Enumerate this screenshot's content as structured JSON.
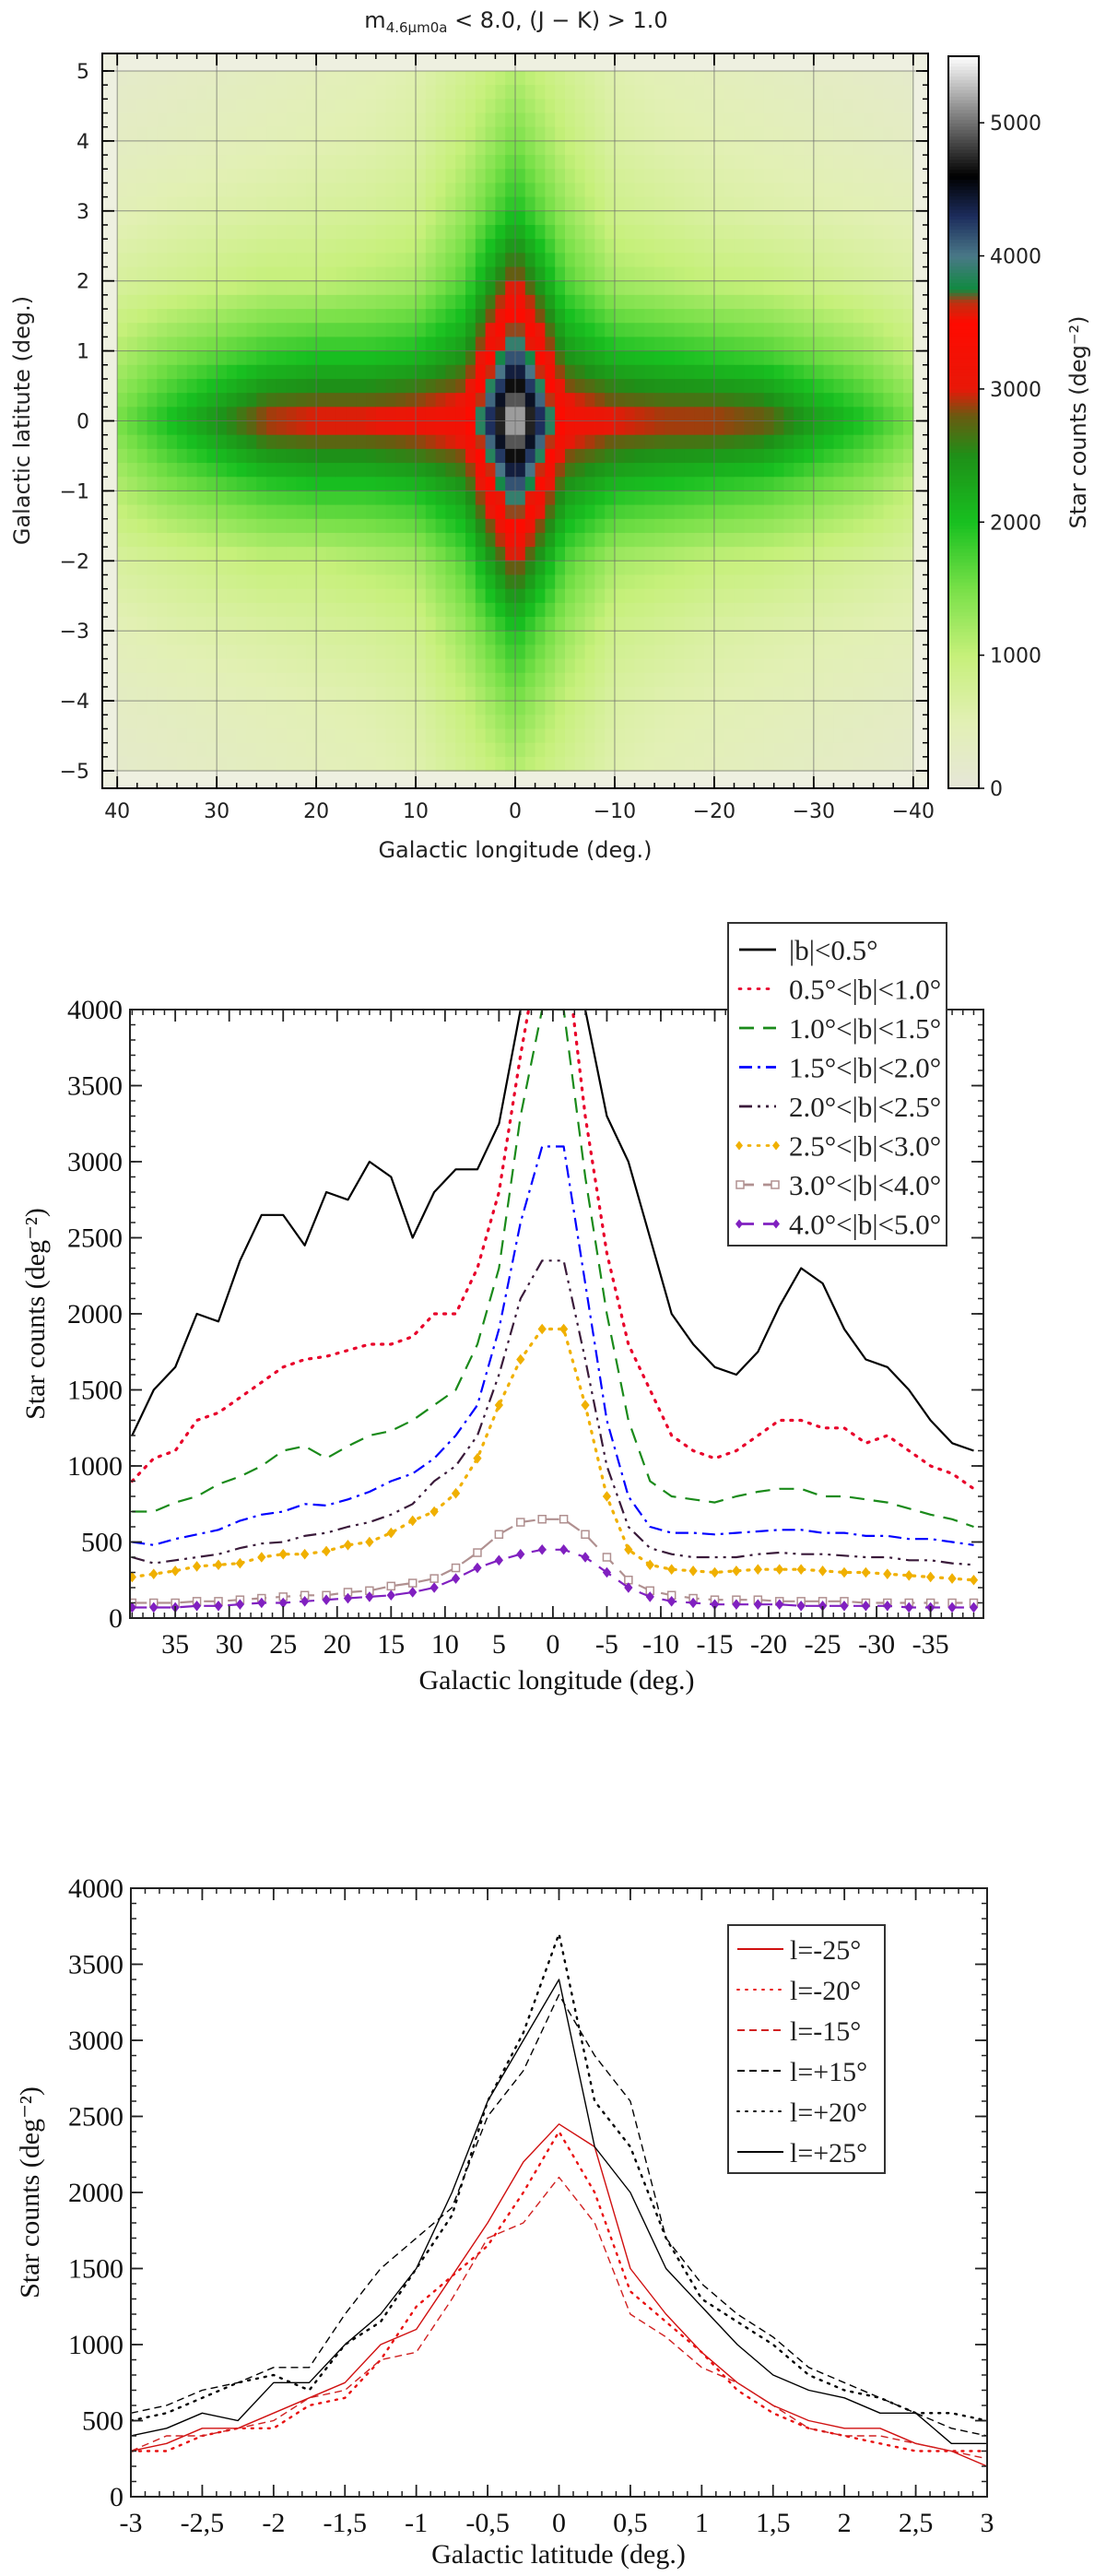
{
  "chart_data": [
    {
      "type": "heatmap",
      "title": {
        "main": "m",
        "sub": "4.6μm0a",
        "rest": " < 8.0, (J − K) > 1.0"
      },
      "xlabel": "Galactic longitude (deg.)",
      "ylabel": "Galactic latitute (deg.)",
      "colorbar_label": "Star counts (deg⁻²)",
      "xlim": [
        41.5,
        -41.5
      ],
      "ylim": [
        -5.25,
        5.25
      ],
      "grid": true,
      "xticks": [
        40,
        30,
        20,
        10,
        0,
        -10,
        -20,
        -30,
        -40
      ],
      "xtick_labels": [
        "40",
        "30",
        "20",
        "10",
        "0",
        "−10",
        "−20",
        "−30",
        "−40"
      ],
      "yticks": [
        5,
        4,
        3,
        2,
        1,
        0,
        -1,
        -2,
        -3,
        -4,
        -5
      ],
      "ytick_labels": [
        "5",
        "4",
        "3",
        "2",
        "1",
        "0",
        "−1",
        "−2",
        "−3",
        "−4",
        "−5"
      ],
      "colorbar_range": [
        0,
        5500
      ],
      "colorbar_ticks": [
        0,
        1000,
        2000,
        3000,
        4000,
        5000
      ],
      "colorbar_tick_labels": [
        "0",
        "1000",
        "2000",
        "3000",
        "4000",
        "5000"
      ],
      "colorscale": [
        [
          0,
          "#e6e6d8"
        ],
        [
          500,
          "#e2f0b4"
        ],
        [
          1000,
          "#c6f07a"
        ],
        [
          1500,
          "#78e048"
        ],
        [
          2000,
          "#18c020"
        ],
        [
          2500,
          "#1e9018"
        ],
        [
          2800,
          "#6a5a10"
        ],
        [
          3000,
          "#e81808"
        ],
        [
          3500,
          "#ff0a00"
        ],
        [
          3650,
          "#c03010"
        ],
        [
          3750,
          "#108a40"
        ],
        [
          4000,
          "#4a7888"
        ],
        [
          4300,
          "#1c2c5c"
        ],
        [
          4600,
          "#000000"
        ],
        [
          5000,
          "#707070"
        ],
        [
          5500,
          "#ffffff"
        ]
      ],
      "l": [
        40,
        35,
        30,
        25,
        20,
        15,
        10,
        5,
        0,
        -5,
        -10,
        -15,
        -20,
        -25,
        -30,
        -35,
        -40
      ],
      "b": [
        5,
        4,
        3,
        2,
        1,
        0,
        -1,
        -2,
        -3,
        -4,
        -5
      ],
      "values": [
        [
          200,
          250,
          300,
          350,
          400,
          450,
          550,
          800,
          1100,
          800,
          550,
          450,
          400,
          350,
          300,
          250,
          200
        ],
        [
          300,
          350,
          400,
          450,
          500,
          550,
          650,
          1000,
          1500,
          1000,
          650,
          550,
          500,
          450,
          400,
          350,
          300
        ],
        [
          450,
          550,
          600,
          650,
          700,
          750,
          850,
          1300,
          2000,
          1300,
          850,
          750,
          650,
          600,
          550,
          500,
          450
        ],
        [
          700,
          800,
          900,
          1000,
          1000,
          1100,
          1200,
          1700,
          3000,
          1700,
          1200,
          1100,
          1000,
          950,
          850,
          750,
          650
        ],
        [
          1100,
          1400,
          1600,
          1800,
          1900,
          1900,
          2000,
          2400,
          4200,
          2400,
          2000,
          1900,
          1800,
          1700,
          1500,
          1300,
          1000
        ],
        [
          1500,
          2000,
          2500,
          3000,
          3100,
          3100,
          3200,
          3300,
          5500,
          3300,
          3100,
          3000,
          3000,
          2900,
          2400,
          2000,
          1500
        ],
        [
          1100,
          1400,
          1600,
          1800,
          1900,
          1900,
          2000,
          2400,
          4200,
          2400,
          2000,
          1900,
          1800,
          1700,
          1500,
          1300,
          1000
        ],
        [
          700,
          800,
          900,
          1000,
          1000,
          1100,
          1200,
          1700,
          3000,
          1700,
          1200,
          1100,
          1000,
          950,
          850,
          750,
          650
        ],
        [
          450,
          550,
          600,
          650,
          700,
          750,
          850,
          1300,
          2000,
          1300,
          850,
          750,
          650,
          600,
          550,
          500,
          450
        ],
        [
          300,
          350,
          400,
          450,
          500,
          550,
          650,
          1000,
          1500,
          1000,
          650,
          550,
          500,
          450,
          400,
          350,
          300
        ],
        [
          200,
          250,
          300,
          350,
          400,
          450,
          550,
          800,
          1100,
          800,
          550,
          450,
          400,
          350,
          300,
          250,
          200
        ]
      ]
    },
    {
      "type": "line",
      "xlabel": "Galactic longitude (deg.)",
      "ylabel": "Star counts (deg⁻²)",
      "xlim": [
        39.2,
        -39.9
      ],
      "ylim": [
        0,
        4000
      ],
      "xticks": [
        35,
        30,
        25,
        20,
        15,
        10,
        5,
        0,
        -5,
        -10,
        -15,
        -20,
        -25,
        -30,
        -35
      ],
      "xtick_labels": [
        "35",
        "30",
        "25",
        "20",
        "15",
        "10",
        "5",
        "0",
        "-5",
        "-10",
        "-15",
        "-20",
        "-25",
        "-30",
        "-35"
      ],
      "yticks": [
        0,
        500,
        1000,
        1500,
        2000,
        2500,
        3000,
        3500,
        4000
      ],
      "ytick_labels": [
        "0",
        "500",
        "1000",
        "1500",
        "2000",
        "2500",
        "3000",
        "3500",
        "4000"
      ],
      "legend": "top-right",
      "x": [
        39,
        37,
        35,
        33,
        31,
        29,
        27,
        25,
        23,
        21,
        19,
        17,
        15,
        13,
        11,
        9,
        7,
        5,
        3,
        1,
        -1,
        -3,
        -5,
        -7,
        -9,
        -11,
        -13,
        -15,
        -17,
        -19,
        -21,
        -23,
        -25,
        -27,
        -29,
        -31,
        -33,
        -35,
        -37,
        -39
      ],
      "series": [
        {
          "name": "|b|<0.5°",
          "color": "#000000",
          "style": "solid",
          "marker": "none",
          "values": [
            1200,
            1500,
            1650,
            2000,
            1950,
            2350,
            2650,
            2650,
            2450,
            2800,
            2750,
            3000,
            2900,
            2500,
            2800,
            2950,
            2950,
            3250,
            4000,
            4500,
            4500,
            4000,
            3300,
            3000,
            2500,
            2000,
            1800,
            1650,
            1600,
            1750,
            2050,
            2300,
            2200,
            1900,
            1700,
            1650,
            1500,
            1300,
            1150,
            1100
          ]
        },
        {
          "name": "0.5°<|b|<1.0°",
          "color": "#e8002a",
          "style": "dotted",
          "marker": "none",
          "values": [
            900,
            1050,
            1100,
            1300,
            1350,
            1450,
            1550,
            1650,
            1700,
            1720,
            1760,
            1800,
            1800,
            1850,
            2000,
            2000,
            2300,
            2800,
            3700,
            4500,
            4500,
            3300,
            2400,
            1800,
            1500,
            1200,
            1100,
            1050,
            1100,
            1200,
            1300,
            1300,
            1250,
            1250,
            1150,
            1200,
            1100,
            1000,
            950,
            850
          ]
        },
        {
          "name": "1.0°<|b|<1.5°",
          "color": "#1a8a1a",
          "style": "dashed",
          "marker": "none",
          "values": [
            700,
            700,
            760,
            800,
            880,
            930,
            1000,
            1100,
            1130,
            1050,
            1130,
            1200,
            1230,
            1300,
            1400,
            1500,
            1800,
            2300,
            3300,
            4000,
            4000,
            2900,
            2000,
            1300,
            900,
            800,
            780,
            760,
            800,
            830,
            850,
            850,
            800,
            800,
            780,
            760,
            720,
            680,
            650,
            600
          ]
        },
        {
          "name": "1.5°<|b|<2.0°",
          "color": "#0000ff",
          "style": "dashdot",
          "marker": "none",
          "values": [
            500,
            480,
            520,
            550,
            580,
            640,
            680,
            700,
            750,
            740,
            780,
            830,
            900,
            950,
            1050,
            1200,
            1400,
            1900,
            2600,
            3100,
            3100,
            2200,
            1300,
            800,
            600,
            560,
            560,
            550,
            560,
            570,
            580,
            580,
            560,
            560,
            540,
            540,
            520,
            520,
            500,
            480
          ]
        },
        {
          "name": "2.0°<|b|<2.5°",
          "color": "#3a1a3a",
          "style": "dashdotdot",
          "marker": "none",
          "values": [
            400,
            360,
            380,
            400,
            420,
            460,
            490,
            500,
            540,
            560,
            600,
            630,
            680,
            750,
            900,
            1000,
            1200,
            1600,
            2100,
            2350,
            2350,
            1700,
            1000,
            600,
            460,
            420,
            400,
            400,
            400,
            420,
            430,
            420,
            420,
            410,
            400,
            400,
            380,
            380,
            360,
            350
          ]
        },
        {
          "name": "2.5°<|b|<3.0°",
          "color": "#f0b000",
          "style": "dotted",
          "marker": "diamond",
          "values": [
            270,
            290,
            310,
            340,
            350,
            360,
            400,
            420,
            420,
            440,
            480,
            500,
            560,
            640,
            700,
            820,
            1050,
            1400,
            1700,
            1900,
            1900,
            1400,
            800,
            450,
            350,
            320,
            310,
            300,
            310,
            320,
            320,
            320,
            310,
            300,
            300,
            290,
            280,
            270,
            260,
            250
          ]
        },
        {
          "name": "3.0°<|b|<4.0°",
          "color": "#b09090",
          "style": "dashed",
          "marker": "square",
          "values": [
            100,
            100,
            100,
            110,
            110,
            120,
            130,
            140,
            150,
            150,
            170,
            180,
            210,
            230,
            260,
            330,
            430,
            550,
            630,
            650,
            650,
            550,
            400,
            250,
            180,
            150,
            130,
            120,
            120,
            120,
            110,
            110,
            110,
            110,
            100,
            100,
            100,
            100,
            100,
            100
          ]
        },
        {
          "name": "4.0°<|b|<5.0°",
          "color": "#8020c0",
          "style": "dashed",
          "marker": "diamond",
          "values": [
            70,
            70,
            70,
            80,
            80,
            90,
            100,
            100,
            110,
            120,
            130,
            140,
            150,
            170,
            200,
            260,
            330,
            380,
            420,
            450,
            450,
            400,
            300,
            200,
            140,
            110,
            100,
            90,
            90,
            90,
            90,
            80,
            80,
            80,
            80,
            80,
            70,
            70,
            70,
            70
          ]
        }
      ]
    },
    {
      "type": "line",
      "xlabel": "Galactic latitude (deg.)",
      "ylabel": "Star counts (deg⁻²)",
      "xlim": [
        -3,
        3
      ],
      "ylim": [
        0,
        4000
      ],
      "xticks": [
        -3,
        -2.5,
        -2,
        -1.5,
        -1,
        -0.5,
        0,
        0.5,
        1,
        1.5,
        2,
        2.5,
        3
      ],
      "xtick_labels": [
        "-3",
        "-2,5",
        "-2",
        "-1,5",
        "-1",
        "-0,5",
        "0",
        "0,5",
        "1",
        "1,5",
        "2",
        "2,5",
        "3"
      ],
      "yticks": [
        0,
        500,
        1000,
        1500,
        2000,
        2500,
        3000,
        3500,
        4000
      ],
      "ytick_labels": [
        "0",
        "500",
        "1000",
        "1500",
        "2000",
        "2500",
        "3000",
        "3500",
        "4000"
      ],
      "legend": "top-right",
      "x": [
        -3,
        -2.75,
        -2.5,
        -2.25,
        -2,
        -1.75,
        -1.5,
        -1.25,
        -1,
        -0.75,
        -0.5,
        -0.25,
        0,
        0.25,
        0.5,
        0.75,
        1,
        1.25,
        1.5,
        1.75,
        2,
        2.25,
        2.5,
        2.75,
        3
      ],
      "series": [
        {
          "name": "l=-25°",
          "color": "#d01010",
          "style": "solid",
          "values": [
            300,
            350,
            450,
            450,
            550,
            650,
            750,
            1000,
            1100,
            1450,
            1800,
            2200,
            2450,
            2300,
            1500,
            1200,
            950,
            750,
            600,
            500,
            450,
            450,
            350,
            300,
            200
          ]
        },
        {
          "name": "l=-20°",
          "color": "#e81010",
          "style": "dotted",
          "values": [
            300,
            300,
            400,
            450,
            450,
            600,
            650,
            900,
            1250,
            1450,
            1650,
            2000,
            2400,
            2000,
            1350,
            1150,
            950,
            700,
            550,
            450,
            400,
            350,
            300,
            300,
            300
          ]
        },
        {
          "name": "l=-15°",
          "color": "#d02020",
          "style": "dashed",
          "values": [
            300,
            400,
            400,
            450,
            500,
            650,
            700,
            900,
            950,
            1300,
            1700,
            1800,
            2100,
            1800,
            1200,
            1050,
            850,
            750,
            600,
            450,
            400,
            400,
            350,
            300,
            250
          ]
        },
        {
          "name": "l=+15°",
          "color": "#000000",
          "style": "dashed",
          "values": [
            550,
            600,
            700,
            750,
            850,
            850,
            1200,
            1500,
            1700,
            1900,
            2500,
            2800,
            3300,
            2900,
            2600,
            1700,
            1400,
            1200,
            1050,
            850,
            750,
            650,
            550,
            450,
            400
          ]
        },
        {
          "name": "l=+20°",
          "color": "#000000",
          "style": "dotted",
          "values": [
            500,
            550,
            650,
            750,
            800,
            700,
            1000,
            1150,
            1500,
            1850,
            2600,
            3050,
            3700,
            2600,
            2300,
            1700,
            1300,
            1150,
            1000,
            800,
            700,
            650,
            550,
            550,
            500
          ]
        },
        {
          "name": "l=+25°",
          "color": "#000000",
          "style": "solid",
          "values": [
            400,
            450,
            550,
            500,
            750,
            750,
            1000,
            1200,
            1500,
            2000,
            2600,
            3000,
            3400,
            2300,
            2000,
            1500,
            1250,
            1000,
            800,
            700,
            650,
            550,
            550,
            350,
            350
          ]
        }
      ]
    }
  ]
}
